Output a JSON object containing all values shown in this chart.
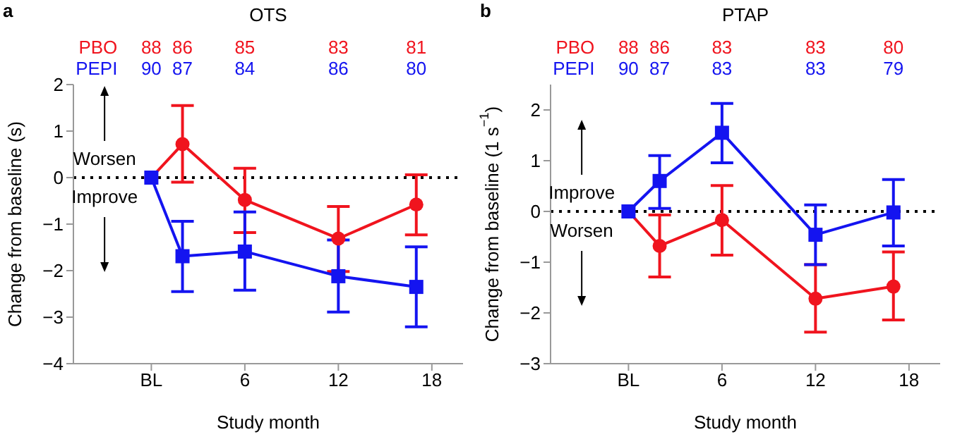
{
  "chart_data": [
    {
      "type": "line",
      "title": "OTS",
      "xlabel": "Study month",
      "ylabel": "Change from baseline (s)",
      "annotations": [
        "a",
        "Worsen",
        "Improve",
        "88",
        "86",
        "85",
        "83",
        "81",
        "90",
        "87",
        "84",
        "86",
        "80"
      ],
      "legend": "top left",
      "grid": false,
      "line_style": "solid",
      "x": [
        0,
        2,
        6,
        12,
        17
      ],
      "xlim": [
        -5,
        20
      ],
      "xticks": [
        {
          "value": 0,
          "label": "BL"
        },
        6,
        12,
        18
      ],
      "ylim": [
        -4,
        2
      ],
      "yticks": [
        -4,
        -3,
        -2,
        -1,
        0,
        1,
        2
      ],
      "ref_lines": [
        {
          "axis": "y",
          "value": 0,
          "color": "#000000",
          "line_style": "dotted"
        }
      ],
      "series": [
        {
          "name": "PBO",
          "color": "#f0141e",
          "marker": "circle",
          "values": [
            0,
            0.72,
            -0.48,
            -1.31,
            -0.58
          ],
          "errors": [
            null,
            [
              -0.1,
              1.55
            ],
            [
              -1.18,
              0.2
            ],
            [
              -2.02,
              -0.62
            ],
            [
              -1.23,
              0.06
            ]
          ]
        },
        {
          "name": "PEPI",
          "color": "#1414f0",
          "marker": "square",
          "values": [
            0,
            -1.69,
            -1.59,
            -2.12,
            -2.35
          ],
          "errors": [
            null,
            [
              -2.45,
              -0.94
            ],
            [
              -2.42,
              -0.74
            ],
            [
              -2.89,
              -1.34
            ],
            [
              -3.21,
              -1.49
            ]
          ]
        }
      ]
    },
    {
      "type": "line",
      "title": "PTAP",
      "xlabel": "Study month",
      "ylabel": "Change from baseline (1 s$^{−1}$)",
      "annotations": [
        "b",
        "Improve",
        "Worsen",
        "88",
        "86",
        "83",
        "83",
        "80",
        "90",
        "87",
        "83",
        "83",
        "79"
      ],
      "legend": "top left",
      "grid": false,
      "line_style": "solid",
      "x": [
        0,
        2,
        6,
        12,
        17
      ],
      "xlim": [
        -5,
        20
      ],
      "xticks": [
        {
          "value": 0,
          "label": "BL"
        },
        6,
        12,
        18
      ],
      "ylim": [
        -3,
        2.5
      ],
      "yticks": [
        -3,
        -2,
        -1,
        0,
        1,
        2
      ],
      "ref_lines": [
        {
          "axis": "y",
          "value": 0,
          "color": "#000000",
          "line_style": "dotted"
        }
      ],
      "series": [
        {
          "name": "PBO",
          "color": "#f0141e",
          "marker": "circle",
          "values": [
            0,
            -0.68,
            -0.17,
            -1.72,
            -1.48
          ],
          "errors": [
            null,
            [
              -1.29,
              -0.07
            ],
            [
              -0.86,
              0.51
            ],
            [
              -2.38,
              -1.05
            ],
            [
              -2.14,
              -0.8
            ]
          ]
        },
        {
          "name": "PEPI",
          "color": "#1414f0",
          "marker": "square",
          "values": [
            0,
            0.6,
            1.55,
            -0.46,
            -0.02
          ],
          "errors": [
            null,
            [
              0.06,
              1.1
            ],
            [
              0.96,
              2.13
            ],
            [
              -1.05,
              0.13
            ],
            [
              -0.68,
              0.63
            ]
          ]
        }
      ]
    }
  ]
}
